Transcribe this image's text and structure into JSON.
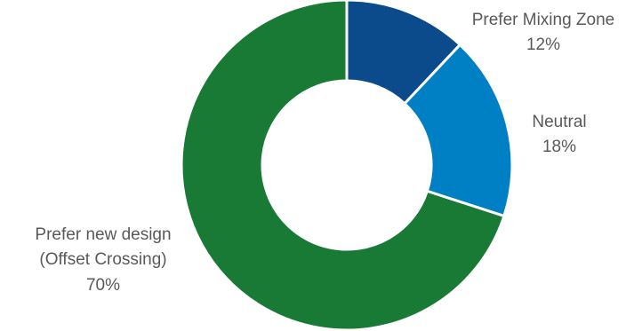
{
  "chart_data": {
    "type": "pie",
    "donut": true,
    "slices": [
      {
        "label": "Prefer Mixing Zone",
        "value": 12,
        "value_label": "12%",
        "color": "#0B4A8B"
      },
      {
        "label": "Neutral",
        "value": 18,
        "value_label": "18%",
        "color": "#0080C4"
      },
      {
        "label": "Prefer new design (Offset Crossing)",
        "label_lines": [
          "Prefer new design",
          "(Offset Crossing)"
        ],
        "value": 70,
        "value_label": "70%",
        "color": "#187A34"
      }
    ],
    "title": "",
    "legend": "none",
    "data_labels": "outside"
  }
}
